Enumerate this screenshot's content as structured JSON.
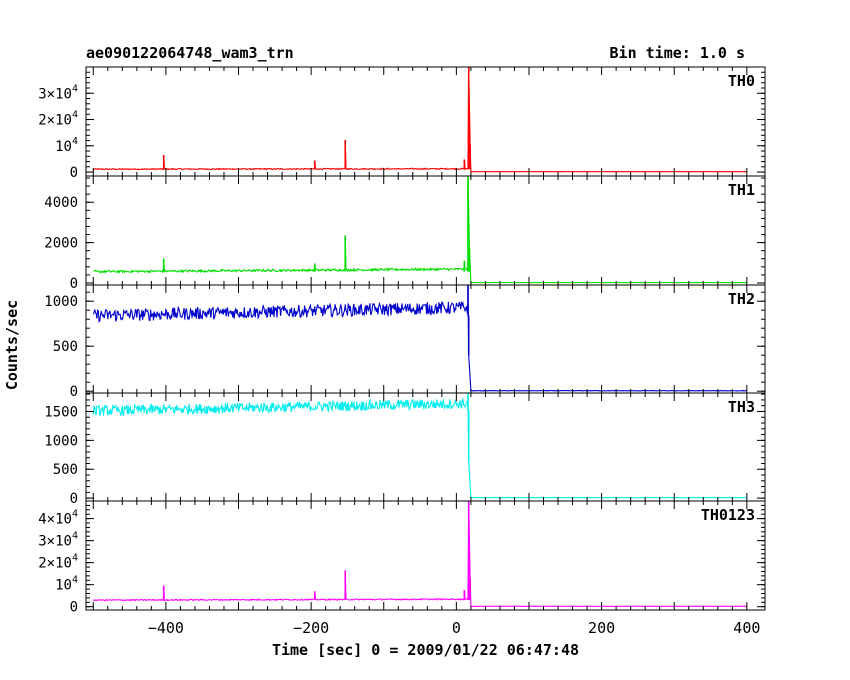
{
  "header": {
    "title": "ae090122064748_wam3_trn",
    "bin_time": "Bin time: 1.0 s"
  },
  "chart_data": {
    "type": "line",
    "ylabel": "Counts/sec",
    "xlabel": "Time [sec] 0 = 2009/01/22 06:47:48",
    "xlim": [
      -510,
      425
    ],
    "xticks": [
      -400,
      -200,
      0,
      200,
      400
    ],
    "grid": false,
    "panels": [
      {
        "name": "TH0",
        "color": "#ff0000",
        "ylim": [
          -1500,
          40000
        ],
        "yticks": [
          {
            "v": 0,
            "m": "0",
            "e": ""
          },
          {
            "v": 10000,
            "m": "10",
            "e": "4"
          },
          {
            "v": 20000,
            "m": "2×10",
            "e": "4"
          },
          {
            "v": 30000,
            "m": "3×10",
            "e": "4"
          }
        ],
        "segments": [
          {
            "x0": -500,
            "x1": 16,
            "base0": 1100,
            "base1": 1250,
            "noise": 220
          },
          {
            "x0": 20,
            "x1": 400,
            "base0": 150,
            "base1": 150,
            "noise": 25
          }
        ],
        "spikes": [
          {
            "x": -403,
            "y": 6500
          },
          {
            "x": -195,
            "y": 4400
          },
          {
            "x": -153,
            "y": 12200
          },
          {
            "x": 11,
            "y": 4800
          },
          {
            "x": 17,
            "y": 40000
          },
          {
            "x": 19,
            "y": 10500
          }
        ]
      },
      {
        "name": "TH1",
        "color": "#00e000",
        "ylim": [
          -100,
          5300
        ],
        "yticks": [
          {
            "v": 0,
            "m": "0",
            "e": ""
          },
          {
            "v": 2000,
            "m": "2000",
            "e": ""
          },
          {
            "v": 4000,
            "m": "4000",
            "e": ""
          }
        ],
        "segments": [
          {
            "x0": -500,
            "x1": 16,
            "base0": 560,
            "base1": 690,
            "noise": 55
          },
          {
            "x0": 20,
            "x1": 400,
            "base0": 20,
            "base1": 20,
            "noise": 8
          }
        ],
        "spikes": [
          {
            "x": -403,
            "y": 1200
          },
          {
            "x": -195,
            "y": 960
          },
          {
            "x": -153,
            "y": 2350
          },
          {
            "x": 11,
            "y": 1100
          },
          {
            "x": 16,
            "y": 5300
          },
          {
            "x": 18,
            "y": 1750
          }
        ]
      },
      {
        "name": "TH2",
        "color": "#0000cc",
        "ylim": [
          -20,
          1180
        ],
        "yticks": [
          {
            "v": 0,
            "m": "0",
            "e": ""
          },
          {
            "v": 500,
            "m": "500",
            "e": ""
          },
          {
            "v": 1000,
            "m": "1000",
            "e": ""
          }
        ],
        "segments": [
          {
            "x0": -500,
            "x1": 16,
            "base0": 840,
            "base1": 930,
            "noise": 70
          },
          {
            "x0": 20,
            "x1": 400,
            "base0": 5,
            "base1": 5,
            "noise": 3
          }
        ],
        "spikes": [
          {
            "x": 16,
            "y": 1180
          },
          {
            "x": 17,
            "y": 400
          }
        ]
      },
      {
        "name": "TH3",
        "color": "#00eeee",
        "ylim": [
          -50,
          1820
        ],
        "yticks": [
          {
            "v": 0,
            "m": "0",
            "e": ""
          },
          {
            "v": 500,
            "m": "500",
            "e": ""
          },
          {
            "v": 1000,
            "m": "1000",
            "e": ""
          },
          {
            "v": 1500,
            "m": "1500",
            "e": ""
          }
        ],
        "segments": [
          {
            "x0": -500,
            "x1": 16,
            "base0": 1510,
            "base1": 1640,
            "noise": 90
          },
          {
            "x0": 20,
            "x1": 400,
            "base0": 8,
            "base1": 8,
            "noise": 4
          }
        ],
        "spikes": [
          {
            "x": 16,
            "y": 1820
          },
          {
            "x": 17,
            "y": 650
          }
        ]
      },
      {
        "name": "TH0123",
        "color": "#ff00ff",
        "ylim": [
          -1500,
          48000
        ],
        "yticks": [
          {
            "v": 0,
            "m": "0",
            "e": ""
          },
          {
            "v": 10000,
            "m": "10",
            "e": "4"
          },
          {
            "v": 20000,
            "m": "2×10",
            "e": "4"
          },
          {
            "v": 30000,
            "m": "3×10",
            "e": "4"
          },
          {
            "v": 40000,
            "m": "4×10",
            "e": "4"
          }
        ],
        "segments": [
          {
            "x0": -500,
            "x1": 16,
            "base0": 3000,
            "base1": 3400,
            "noise": 250
          },
          {
            "x0": 20,
            "x1": 400,
            "base0": 200,
            "base1": 200,
            "noise": 30
          }
        ],
        "spikes": [
          {
            "x": -403,
            "y": 9600
          },
          {
            "x": -195,
            "y": 7000
          },
          {
            "x": -153,
            "y": 16500
          },
          {
            "x": 11,
            "y": 7500
          },
          {
            "x": 17,
            "y": 48000
          },
          {
            "x": 19,
            "y": 13000
          }
        ]
      }
    ]
  }
}
